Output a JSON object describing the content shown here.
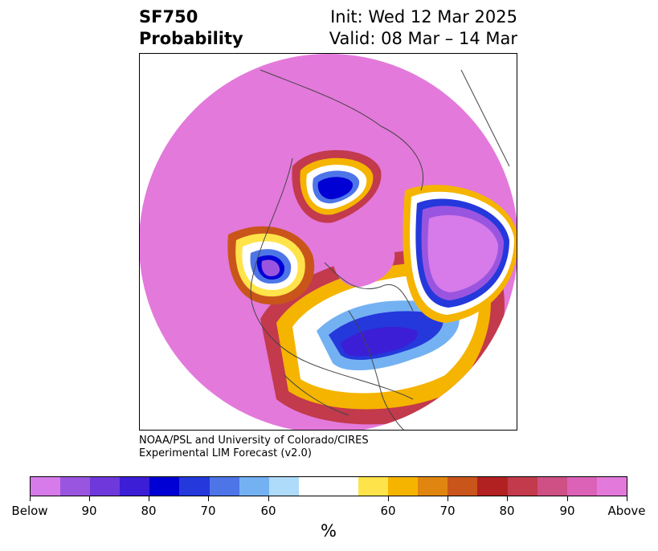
{
  "header": {
    "variable": "SF750",
    "product": "Probability",
    "init": "Init: Wed 12 Mar 2025",
    "valid": "Valid: 08 Mar – 14 Mar"
  },
  "credit": {
    "line1": "NOAA/PSL and University of Colorado/CIRES",
    "line2": "Experimental LIM Forecast (v2.0)"
  },
  "map": {
    "projection": "north-polar-stereographic",
    "coastline_color": "#444444",
    "background_fill": "#e379db"
  },
  "colorbar": {
    "units": "%",
    "colors": [
      "#d67be9",
      "#9a55e0",
      "#6e38da",
      "#3b1ed6",
      "#0000d4",
      "#2438dc",
      "#4d75e8",
      "#74b1f2",
      "#aedbfa",
      "#ffffff",
      "#ffe34a",
      "#f5b400",
      "#e08610",
      "#c9551a",
      "#b22121",
      "#c23a4c",
      "#cf5085",
      "#dc62b8",
      "#e379db"
    ],
    "labels": [
      "Below",
      "90",
      "80",
      "70",
      "60",
      "60",
      "70",
      "80",
      "90",
      "Above"
    ]
  }
}
